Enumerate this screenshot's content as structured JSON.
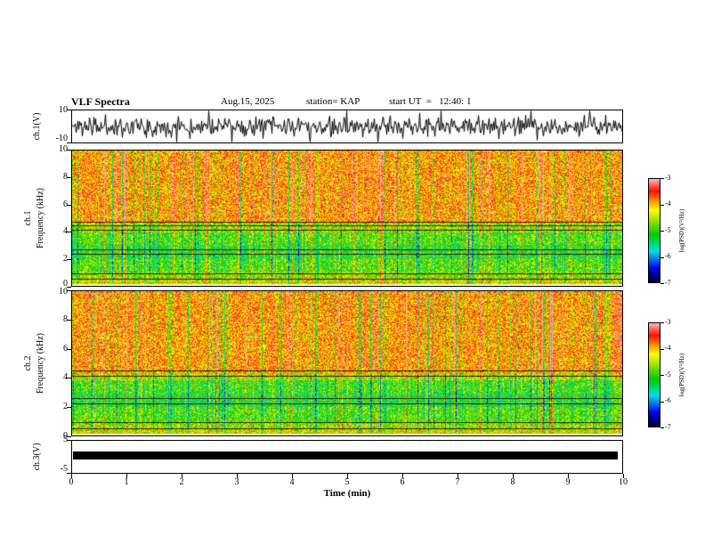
{
  "header": {
    "title": "VLF Spectra",
    "date": "Aug.15, 2025",
    "station": "station= KAP",
    "start_ut": "start UT  =   12:40: 1"
  },
  "axes": {
    "x_label": "Time (min)",
    "x_ticks": [
      "0",
      "1",
      "2",
      "3",
      "4",
      "5",
      "6",
      "7",
      "8",
      "9",
      "10"
    ],
    "freq_ticks": [
      "10",
      "8",
      "6",
      "4",
      "2",
      "0"
    ],
    "wave_ticks": [
      "10",
      "-10"
    ],
    "ch3_ticks": [
      "5",
      "-5"
    ],
    "wave_label": "ch.1(V)",
    "spec1_ch": "ch.1",
    "spec2_ch": "ch.2",
    "freq_label": "Frequency (kHz)",
    "ch3_label": "ch.3(V)"
  },
  "colorbar": {
    "label": "log(PSD)(V²/Hz)",
    "ticks": [
      "-3",
      "-4",
      "-5",
      "-6",
      "-7"
    ],
    "gradient": [
      [
        0.0,
        "#000028"
      ],
      [
        0.14,
        "#0000ee"
      ],
      [
        0.3,
        "#00e0e0"
      ],
      [
        0.46,
        "#00cc00"
      ],
      [
        0.6,
        "#a0e000"
      ],
      [
        0.7,
        "#ffff00"
      ],
      [
        0.8,
        "#ff8000"
      ],
      [
        0.88,
        "#ff1000"
      ],
      [
        1.0,
        "#ffb6b6"
      ]
    ]
  },
  "chart_data": [
    {
      "type": "line",
      "name": "ch1_waveform",
      "ylabel": "ch.1(V)",
      "ylim": [
        -10,
        10
      ],
      "xlim": [
        0,
        10
      ],
      "description": "Dense black broadband noise waveform, mean ~0 V, typical excursions +/-3 V with frequent spikes to +/-9 V over the full 10 minutes",
      "seed": 11,
      "std": 3.0,
      "spike_prob": 0.05
    },
    {
      "type": "heatmap",
      "name": "ch1_spectrogram",
      "ylabel": "ch.1 Frequency (kHz)",
      "ylim": [
        0,
        10
      ],
      "xlim": [
        0,
        10
      ],
      "zlabel": "log(PSD)(V²/Hz)",
      "zlim": [
        -7,
        -3
      ],
      "description": "Spectrogram: intense red broadband power above ~4.5 kHz with vertical yellow/green streaks; green/cyan mottled power 0.5-4 kHz; bright yellow-white strip near 0 kHz; dark horizontal interference lines",
      "seed": 23,
      "bands": [
        {
          "fmin": 4.6,
          "fmax": 10.0,
          "level": 0.78
        },
        {
          "fmin": 3.95,
          "fmax": 4.6,
          "level": 0.6
        },
        {
          "fmin": 3.0,
          "fmax": 3.95,
          "level": 0.52
        },
        {
          "fmin": 2.0,
          "fmax": 3.0,
          "level": 0.47
        },
        {
          "fmin": 1.05,
          "fmax": 2.0,
          "level": 0.52
        },
        {
          "fmin": 0.45,
          "fmax": 1.05,
          "level": 0.58
        },
        {
          "fmin": 0.12,
          "fmax": 0.45,
          "level": 0.66
        }
      ],
      "dark_lines_khz": [
        4.75,
        4.45,
        4.15,
        2.7,
        2.35,
        0.95,
        0.55
      ]
    },
    {
      "type": "heatmap",
      "name": "ch2_spectrogram",
      "ylabel": "ch.2 Frequency (kHz)",
      "ylim": [
        0,
        10
      ],
      "xlim": [
        0,
        10
      ],
      "zlabel": "log(PSD)(V²/Hz)",
      "zlim": [
        -7,
        -3
      ],
      "description": "Spectrogram similar to ch.1: red broadband power above ~4.3 kHz, green/cyan 0.5-4 kHz, yellow-white strip at bottom, dark horizontal interference lines",
      "seed": 57,
      "bands": [
        {
          "fmin": 4.35,
          "fmax": 10.0,
          "level": 0.78
        },
        {
          "fmin": 3.8,
          "fmax": 4.35,
          "level": 0.62
        },
        {
          "fmin": 2.9,
          "fmax": 3.8,
          "level": 0.5
        },
        {
          "fmin": 1.95,
          "fmax": 2.9,
          "level": 0.46
        },
        {
          "fmin": 1.0,
          "fmax": 1.95,
          "level": 0.52
        },
        {
          "fmin": 0.45,
          "fmax": 1.0,
          "level": 0.58
        },
        {
          "fmin": 0.12,
          "fmax": 0.45,
          "level": 0.66
        }
      ],
      "dark_lines_khz": [
        4.5,
        4.15,
        2.6,
        2.2,
        0.9,
        0.5
      ]
    },
    {
      "type": "line",
      "name": "ch3_waveform",
      "ylabel": "ch.3(V)",
      "ylim": [
        -5,
        5
      ],
      "xlim": [
        0,
        10
      ],
      "description": "Saturated/clipped channel: solid black band from roughly -0.5 V to +2 V spanning the entire 10-minute record"
    }
  ]
}
